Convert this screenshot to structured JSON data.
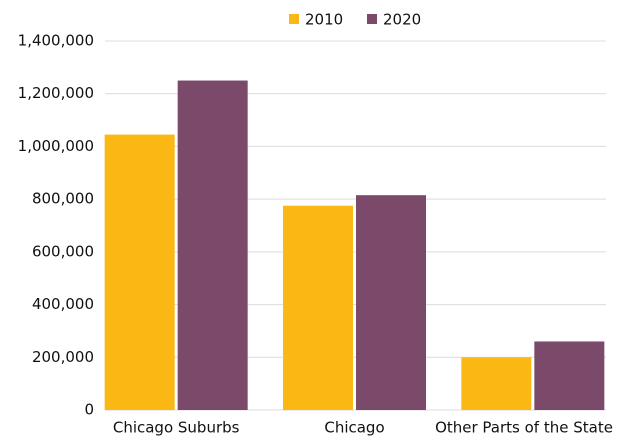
{
  "chart_data": {
    "type": "bar",
    "categories": [
      "Chicago Suburbs",
      "Chicago",
      "Other Parts of the State"
    ],
    "series": [
      {
        "name": "2010",
        "color": "#fbb714",
        "values": [
          1045000,
          775000,
          200000
        ]
      },
      {
        "name": "2020",
        "color": "#7b4a6b",
        "values": [
          1250000,
          815000,
          260000
        ]
      }
    ],
    "ylim": [
      0,
      1400000
    ],
    "yticks": [
      0,
      {
        "value": 200000,
        "label": "200,000"
      },
      {
        "value": 400000,
        "label": "400,000"
      },
      {
        "value": 600000,
        "label": "600,000"
      },
      {
        "value": 800000,
        "label": "800,000"
      },
      {
        "value": 1000000,
        "label": "1,000,000"
      },
      {
        "value": 1200000,
        "label": "1,200,000"
      },
      {
        "value": 1400000,
        "label": "1,400,000"
      }
    ],
    "grid": true,
    "legend": "top"
  }
}
